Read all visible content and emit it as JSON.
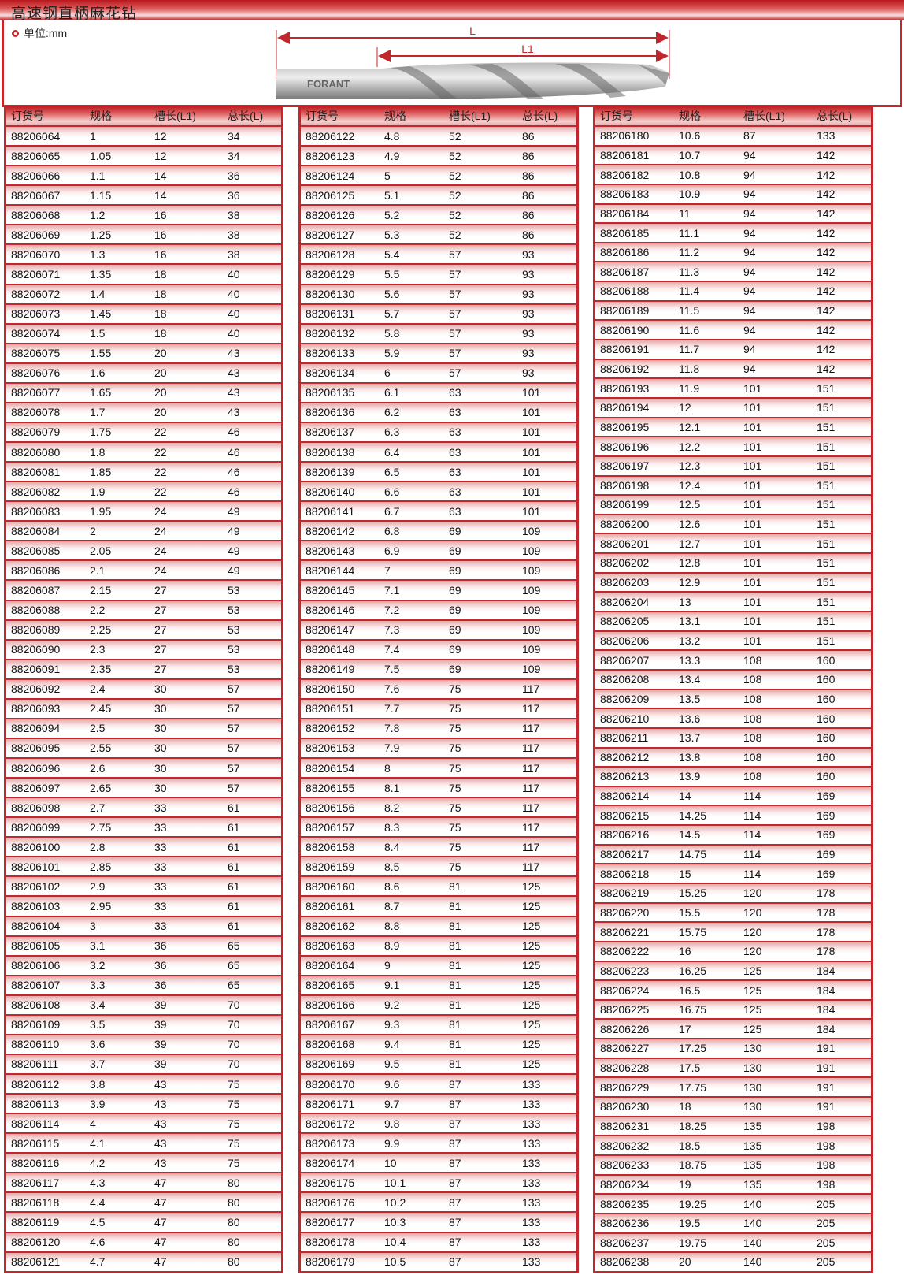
{
  "title": "高速钢直柄麻花钻",
  "unit": "单位:mm",
  "diagram": {
    "label_L": "L",
    "label_L1": "L1",
    "brand": "FORANT"
  },
  "colors": {
    "accent": "#c0282d"
  },
  "headers": [
    "订货号",
    "规格",
    "槽长(L1)",
    "总长(L)"
  ],
  "columns": [
    [
      [
        "88206064",
        "1",
        "12",
        "34"
      ],
      [
        "88206065",
        "1.05",
        "12",
        "34"
      ],
      [
        "88206066",
        "1.1",
        "14",
        "36"
      ],
      [
        "88206067",
        "1.15",
        "14",
        "36"
      ],
      [
        "88206068",
        "1.2",
        "16",
        "38"
      ],
      [
        "88206069",
        "1.25",
        "16",
        "38"
      ],
      [
        "88206070",
        "1.3",
        "16",
        "38"
      ],
      [
        "88206071",
        "1.35",
        "18",
        "40"
      ],
      [
        "88206072",
        "1.4",
        "18",
        "40"
      ],
      [
        "88206073",
        "1.45",
        "18",
        "40"
      ],
      [
        "88206074",
        "1.5",
        "18",
        "40"
      ],
      [
        "88206075",
        "1.55",
        "20",
        "43"
      ],
      [
        "88206076",
        "1.6",
        "20",
        "43"
      ],
      [
        "88206077",
        "1.65",
        "20",
        "43"
      ],
      [
        "88206078",
        "1.7",
        "20",
        "43"
      ],
      [
        "88206079",
        "1.75",
        "22",
        "46"
      ],
      [
        "88206080",
        "1.8",
        "22",
        "46"
      ],
      [
        "88206081",
        "1.85",
        "22",
        "46"
      ],
      [
        "88206082",
        "1.9",
        "22",
        "46"
      ],
      [
        "88206083",
        "1.95",
        "24",
        "49"
      ],
      [
        "88206084",
        "2",
        "24",
        "49"
      ],
      [
        "88206085",
        "2.05",
        "24",
        "49"
      ],
      [
        "88206086",
        "2.1",
        "24",
        "49"
      ],
      [
        "88206087",
        "2.15",
        "27",
        "53"
      ],
      [
        "88206088",
        "2.2",
        "27",
        "53"
      ],
      [
        "88206089",
        "2.25",
        "27",
        "53"
      ],
      [
        "88206090",
        "2.3",
        "27",
        "53"
      ],
      [
        "88206091",
        "2.35",
        "27",
        "53"
      ],
      [
        "88206092",
        "2.4",
        "30",
        "57"
      ],
      [
        "88206093",
        "2.45",
        "30",
        "57"
      ],
      [
        "88206094",
        "2.5",
        "30",
        "57"
      ],
      [
        "88206095",
        "2.55",
        "30",
        "57"
      ],
      [
        "88206096",
        "2.6",
        "30",
        "57"
      ],
      [
        "88206097",
        "2.65",
        "30",
        "57"
      ],
      [
        "88206098",
        "2.7",
        "33",
        "61"
      ],
      [
        "88206099",
        "2.75",
        "33",
        "61"
      ],
      [
        "88206100",
        "2.8",
        "33",
        "61"
      ],
      [
        "88206101",
        "2.85",
        "33",
        "61"
      ],
      [
        "88206102",
        "2.9",
        "33",
        "61"
      ],
      [
        "88206103",
        "2.95",
        "33",
        "61"
      ],
      [
        "88206104",
        "3",
        "33",
        "61"
      ],
      [
        "88206105",
        "3.1",
        "36",
        "65"
      ],
      [
        "88206106",
        "3.2",
        "36",
        "65"
      ],
      [
        "88206107",
        "3.3",
        "36",
        "65"
      ],
      [
        "88206108",
        "3.4",
        "39",
        "70"
      ],
      [
        "88206109",
        "3.5",
        "39",
        "70"
      ],
      [
        "88206110",
        "3.6",
        "39",
        "70"
      ],
      [
        "88206111",
        "3.7",
        "39",
        "70"
      ],
      [
        "88206112",
        "3.8",
        "43",
        "75"
      ],
      [
        "88206113",
        "3.9",
        "43",
        "75"
      ],
      [
        "88206114",
        "4",
        "43",
        "75"
      ],
      [
        "88206115",
        "4.1",
        "43",
        "75"
      ],
      [
        "88206116",
        "4.2",
        "43",
        "75"
      ],
      [
        "88206117",
        "4.3",
        "47",
        "80"
      ],
      [
        "88206118",
        "4.4",
        "47",
        "80"
      ],
      [
        "88206119",
        "4.5",
        "47",
        "80"
      ],
      [
        "88206120",
        "4.6",
        "47",
        "80"
      ],
      [
        "88206121",
        "4.7",
        "47",
        "80"
      ]
    ],
    [
      [
        "88206122",
        "4.8",
        "52",
        "86"
      ],
      [
        "88206123",
        "4.9",
        "52",
        "86"
      ],
      [
        "88206124",
        "5",
        "52",
        "86"
      ],
      [
        "88206125",
        "5.1",
        "52",
        "86"
      ],
      [
        "88206126",
        "5.2",
        "52",
        "86"
      ],
      [
        "88206127",
        "5.3",
        "52",
        "86"
      ],
      [
        "88206128",
        "5.4",
        "57",
        "93"
      ],
      [
        "88206129",
        "5.5",
        "57",
        "93"
      ],
      [
        "88206130",
        "5.6",
        "57",
        "93"
      ],
      [
        "88206131",
        "5.7",
        "57",
        "93"
      ],
      [
        "88206132",
        "5.8",
        "57",
        "93"
      ],
      [
        "88206133",
        "5.9",
        "57",
        "93"
      ],
      [
        "88206134",
        "6",
        "57",
        "93"
      ],
      [
        "88206135",
        "6.1",
        "63",
        "101"
      ],
      [
        "88206136",
        "6.2",
        "63",
        "101"
      ],
      [
        "88206137",
        "6.3",
        "63",
        "101"
      ],
      [
        "88206138",
        "6.4",
        "63",
        "101"
      ],
      [
        "88206139",
        "6.5",
        "63",
        "101"
      ],
      [
        "88206140",
        "6.6",
        "63",
        "101"
      ],
      [
        "88206141",
        "6.7",
        "63",
        "101"
      ],
      [
        "88206142",
        "6.8",
        "69",
        "109"
      ],
      [
        "88206143",
        "6.9",
        "69",
        "109"
      ],
      [
        "88206144",
        "7",
        "69",
        "109"
      ],
      [
        "88206145",
        "7.1",
        "69",
        "109"
      ],
      [
        "88206146",
        "7.2",
        "69",
        "109"
      ],
      [
        "88206147",
        "7.3",
        "69",
        "109"
      ],
      [
        "88206148",
        "7.4",
        "69",
        "109"
      ],
      [
        "88206149",
        "7.5",
        "69",
        "109"
      ],
      [
        "88206150",
        "7.6",
        "75",
        "117"
      ],
      [
        "88206151",
        "7.7",
        "75",
        "117"
      ],
      [
        "88206152",
        "7.8",
        "75",
        "117"
      ],
      [
        "88206153",
        "7.9",
        "75",
        "117"
      ],
      [
        "88206154",
        "8",
        "75",
        "117"
      ],
      [
        "88206155",
        "8.1",
        "75",
        "117"
      ],
      [
        "88206156",
        "8.2",
        "75",
        "117"
      ],
      [
        "88206157",
        "8.3",
        "75",
        "117"
      ],
      [
        "88206158",
        "8.4",
        "75",
        "117"
      ],
      [
        "88206159",
        "8.5",
        "75",
        "117"
      ],
      [
        "88206160",
        "8.6",
        "81",
        "125"
      ],
      [
        "88206161",
        "8.7",
        "81",
        "125"
      ],
      [
        "88206162",
        "8.8",
        "81",
        "125"
      ],
      [
        "88206163",
        "8.9",
        "81",
        "125"
      ],
      [
        "88206164",
        "9",
        "81",
        "125"
      ],
      [
        "88206165",
        "9.1",
        "81",
        "125"
      ],
      [
        "88206166",
        "9.2",
        "81",
        "125"
      ],
      [
        "88206167",
        "9.3",
        "81",
        "125"
      ],
      [
        "88206168",
        "9.4",
        "81",
        "125"
      ],
      [
        "88206169",
        "9.5",
        "81",
        "125"
      ],
      [
        "88206170",
        "9.6",
        "87",
        "133"
      ],
      [
        "88206171",
        "9.7",
        "87",
        "133"
      ],
      [
        "88206172",
        "9.8",
        "87",
        "133"
      ],
      [
        "88206173",
        "9.9",
        "87",
        "133"
      ],
      [
        "88206174",
        "10",
        "87",
        "133"
      ],
      [
        "88206175",
        "10.1",
        "87",
        "133"
      ],
      [
        "88206176",
        "10.2",
        "87",
        "133"
      ],
      [
        "88206177",
        "10.3",
        "87",
        "133"
      ],
      [
        "88206178",
        "10.4",
        "87",
        "133"
      ],
      [
        "88206179",
        "10.5",
        "87",
        "133"
      ]
    ],
    [
      [
        "88206180",
        "10.6",
        "87",
        "133"
      ],
      [
        "88206181",
        "10.7",
        "94",
        "142"
      ],
      [
        "88206182",
        "10.8",
        "94",
        "142"
      ],
      [
        "88206183",
        "10.9",
        "94",
        "142"
      ],
      [
        "88206184",
        "11",
        "94",
        "142"
      ],
      [
        "88206185",
        "11.1",
        "94",
        "142"
      ],
      [
        "88206186",
        "11.2",
        "94",
        "142"
      ],
      [
        "88206187",
        "11.3",
        "94",
        "142"
      ],
      [
        "88206188",
        "11.4",
        "94",
        "142"
      ],
      [
        "88206189",
        "11.5",
        "94",
        "142"
      ],
      [
        "88206190",
        "11.6",
        "94",
        "142"
      ],
      [
        "88206191",
        "11.7",
        "94",
        "142"
      ],
      [
        "88206192",
        "11.8",
        "94",
        "142"
      ],
      [
        "88206193",
        "11.9",
        "101",
        "151"
      ],
      [
        "88206194",
        "12",
        "101",
        "151"
      ],
      [
        "88206195",
        "12.1",
        "101",
        "151"
      ],
      [
        "88206196",
        "12.2",
        "101",
        "151"
      ],
      [
        "88206197",
        "12.3",
        "101",
        "151"
      ],
      [
        "88206198",
        "12.4",
        "101",
        "151"
      ],
      [
        "88206199",
        "12.5",
        "101",
        "151"
      ],
      [
        "88206200",
        "12.6",
        "101",
        "151"
      ],
      [
        "88206201",
        "12.7",
        "101",
        "151"
      ],
      [
        "88206202",
        "12.8",
        "101",
        "151"
      ],
      [
        "88206203",
        "12.9",
        "101",
        "151"
      ],
      [
        "88206204",
        "13",
        "101",
        "151"
      ],
      [
        "88206205",
        "13.1",
        "101",
        "151"
      ],
      [
        "88206206",
        "13.2",
        "101",
        "151"
      ],
      [
        "88206207",
        "13.3",
        "108",
        "160"
      ],
      [
        "88206208",
        "13.4",
        "108",
        "160"
      ],
      [
        "88206209",
        "13.5",
        "108",
        "160"
      ],
      [
        "88206210",
        "13.6",
        "108",
        "160"
      ],
      [
        "88206211",
        "13.7",
        "108",
        "160"
      ],
      [
        "88206212",
        "13.8",
        "108",
        "160"
      ],
      [
        "88206213",
        "13.9",
        "108",
        "160"
      ],
      [
        "88206214",
        "14",
        "114",
        "169"
      ],
      [
        "88206215",
        "14.25",
        "114",
        "169"
      ],
      [
        "88206216",
        "14.5",
        "114",
        "169"
      ],
      [
        "88206217",
        "14.75",
        "114",
        "169"
      ],
      [
        "88206218",
        "15",
        "114",
        "169"
      ],
      [
        "88206219",
        "15.25",
        "120",
        "178"
      ],
      [
        "88206220",
        "15.5",
        "120",
        "178"
      ],
      [
        "88206221",
        "15.75",
        "120",
        "178"
      ],
      [
        "88206222",
        "16",
        "120",
        "178"
      ],
      [
        "88206223",
        "16.25",
        "125",
        "184"
      ],
      [
        "88206224",
        "16.5",
        "125",
        "184"
      ],
      [
        "88206225",
        "16.75",
        "125",
        "184"
      ],
      [
        "88206226",
        "17",
        "125",
        "184"
      ],
      [
        "88206227",
        "17.25",
        "130",
        "191"
      ],
      [
        "88206228",
        "17.5",
        "130",
        "191"
      ],
      [
        "88206229",
        "17.75",
        "130",
        "191"
      ],
      [
        "88206230",
        "18",
        "130",
        "191"
      ],
      [
        "88206231",
        "18.25",
        "135",
        "198"
      ],
      [
        "88206232",
        "18.5",
        "135",
        "198"
      ],
      [
        "88206233",
        "18.75",
        "135",
        "198"
      ],
      [
        "88206234",
        "19",
        "135",
        "198"
      ],
      [
        "88206235",
        "19.25",
        "140",
        "205"
      ],
      [
        "88206236",
        "19.5",
        "140",
        "205"
      ],
      [
        "88206237",
        "19.75",
        "140",
        "205"
      ],
      [
        "88206238",
        "20",
        "140",
        "205"
      ]
    ]
  ]
}
